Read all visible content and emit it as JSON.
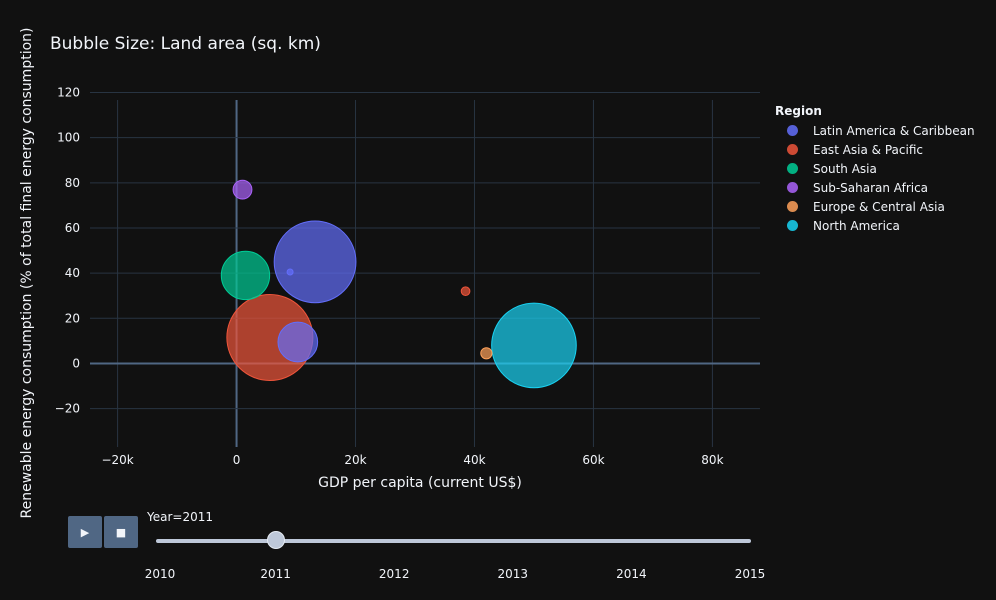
{
  "chart_data": {
    "type": "scatter",
    "title": "Bubble Size: Land area (sq. km)",
    "xlabel": "GDP per capita (current US$)",
    "ylabel": "Renewable energy consumption (% of total final energy consumption)",
    "xlim": [
      -28000,
      88000
    ],
    "ylim": [
      -37,
      122
    ],
    "xticks": [
      -20000,
      0,
      20000,
      40000,
      60000,
      80000
    ],
    "xtick_labels": [
      "−20k",
      "0",
      "20k",
      "40k",
      "60k",
      "80k"
    ],
    "yticks": [
      -20,
      0,
      20,
      40,
      60,
      80,
      100,
      120
    ],
    "ytick_labels": [
      "−20",
      "0",
      "20",
      "40",
      "60",
      "80",
      "100",
      "120"
    ],
    "grid": true,
    "legend_title": "Region",
    "legend_position": "right",
    "series": [
      {
        "name": "Latin America & Caribbean",
        "color": "#636efa",
        "points": [
          {
            "x": 13200,
            "y": 45,
            "size": 8500000
          },
          {
            "x": 10300,
            "y": 9.5,
            "size": 2000000
          },
          {
            "x": 9000,
            "y": 40.5,
            "size": 2000
          }
        ]
      },
      {
        "name": "East Asia & Pacific",
        "color": "#ef553b",
        "points": [
          {
            "x": 5600,
            "y": 11.5,
            "size": 9400000
          },
          {
            "x": 38500,
            "y": 32,
            "size": 95000
          }
        ]
      },
      {
        "name": "South Asia",
        "color": "#00cc96",
        "points": [
          {
            "x": 1500,
            "y": 39,
            "size": 2970000
          }
        ]
      },
      {
        "name": "Sub-Saharan Africa",
        "color": "#ab63fa",
        "points": [
          {
            "x": 1000,
            "y": 77,
            "size": 450000
          }
        ]
      },
      {
        "name": "Europe & Central Asia",
        "color": "#ffa15a",
        "points": [
          {
            "x": 42000,
            "y": 4.5,
            "size": 160000
          }
        ]
      },
      {
        "name": "North America",
        "color": "#19d3f3",
        "points": [
          {
            "x": 50000,
            "y": 8,
            "size": 9100000
          }
        ]
      }
    ]
  },
  "slider": {
    "current_label": "Year=2011",
    "current_index": 1,
    "steps": [
      "2010",
      "2011",
      "2012",
      "2013",
      "2014",
      "2015"
    ]
  },
  "controls": {
    "play_icon": "play-icon",
    "stop_icon": "stop-icon"
  }
}
